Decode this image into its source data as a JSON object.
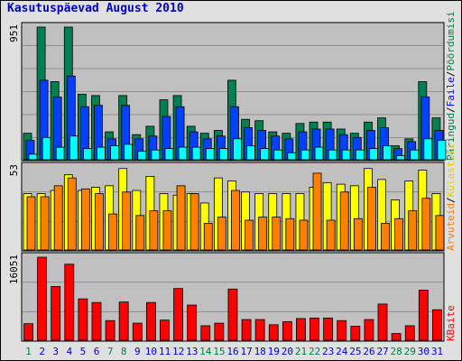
{
  "title": "Kasutuspäevad August 2010",
  "colors": {
    "panel_bg": "#c0c0c0",
    "grid": "#909090",
    "weekday_label": "#0000cc",
    "weekend_label": "#008040",
    "pages": "#ffff00",
    "files": "#0000ff",
    "hits": "#008040",
    "visits": "#ff8000",
    "sites": "#ff8000",
    "kbytes": "#ff0000",
    "visits_fill": "#ff8000",
    "sites_fill": "#ffff00",
    "kbytes_fill": "#ff0000",
    "pages_fill": "#00ffff",
    "files_fill": "#0040ff",
    "hits_fill": "#008050"
  },
  "chart_data": [
    {
      "type": "bar",
      "panel": "top",
      "y_max_label": "951",
      "ylim": [
        0,
        951
      ],
      "grid": true,
      "legend_right": [
        "Päringud",
        "/",
        "Faile",
        "/",
        "Pöördumisi"
      ],
      "categories": [
        "1",
        "2",
        "3",
        "4",
        "5",
        "6",
        "7",
        "8",
        "9",
        "10",
        "11",
        "12",
        "13",
        "14",
        "15",
        "16",
        "17",
        "18",
        "19",
        "20",
        "21",
        "22",
        "23",
        "24",
        "25",
        "26",
        "27",
        "28",
        "29",
        "30",
        "31"
      ],
      "weekend_days": [
        "1",
        "7",
        "8",
        "14",
        "15",
        "21",
        "22",
        "28",
        "29"
      ],
      "series": [
        {
          "name": "Päringud",
          "key": "hits",
          "values": [
            190,
            951,
            560,
            951,
            470,
            460,
            200,
            460,
            180,
            240,
            430,
            460,
            240,
            190,
            210,
            570,
            290,
            280,
            200,
            190,
            260,
            270,
            270,
            220,
            190,
            270,
            300,
            100,
            150,
            560,
            300
          ]
        },
        {
          "name": "Faile",
          "key": "files",
          "values": [
            140,
            570,
            450,
            600,
            380,
            390,
            150,
            390,
            150,
            170,
            310,
            380,
            200,
            150,
            170,
            380,
            230,
            210,
            170,
            150,
            200,
            220,
            220,
            180,
            160,
            210,
            230,
            80,
            130,
            450,
            210
          ]
        },
        {
          "name": "Pöördumisi",
          "key": "pages",
          "values": [
            40,
            160,
            90,
            170,
            80,
            90,
            100,
            110,
            60,
            70,
            80,
            90,
            90,
            80,
            80,
            150,
            100,
            80,
            70,
            50,
            70,
            90,
            70,
            70,
            70,
            80,
            100,
            30,
            70,
            150,
            140
          ]
        }
      ]
    },
    {
      "type": "bar",
      "panel": "middle",
      "y_max_label": "53",
      "ylim": [
        0,
        53
      ],
      "grid": true,
      "legend_right": [
        "Arvuteid",
        "/",
        "Külastusi"
      ],
      "categories": [
        "1",
        "2",
        "3",
        "4",
        "5",
        "6",
        "7",
        "8",
        "9",
        "10",
        "11",
        "12",
        "13",
        "14",
        "15",
        "16",
        "17",
        "18",
        "19",
        "20",
        "21",
        "22",
        "23",
        "24",
        "25",
        "26",
        "27",
        "28",
        "29",
        "30",
        "31"
      ],
      "series": [
        {
          "name": "Külastusi",
          "key": "sites",
          "values": [
            36,
            36,
            38,
            48,
            38,
            40,
            41,
            52,
            38,
            47,
            36,
            35,
            36,
            30,
            46,
            44,
            37,
            36,
            36,
            36,
            36,
            40,
            43,
            42,
            41,
            52,
            45,
            32,
            44,
            51,
            36
          ]
        },
        {
          "name": "Arvuteid",
          "key": "visits",
          "values": [
            34,
            34,
            41,
            46,
            39,
            36,
            23,
            37,
            22,
            25,
            25,
            41,
            36,
            17,
            21,
            38,
            19,
            21,
            21,
            20,
            19,
            49,
            19,
            37,
            20,
            40,
            17,
            20,
            25,
            33,
            22
          ]
        }
      ]
    },
    {
      "type": "bar",
      "panel": "bottom",
      "y_max_label": "16051",
      "ylim": [
        0,
        16051
      ],
      "grid": true,
      "legend_right": [
        "KBaite"
      ],
      "categories": [
        "1",
        "2",
        "3",
        "4",
        "5",
        "6",
        "7",
        "8",
        "9",
        "10",
        "11",
        "12",
        "13",
        "14",
        "15",
        "16",
        "17",
        "18",
        "19",
        "20",
        "21",
        "22",
        "23",
        "24",
        "25",
        "26",
        "27",
        "28",
        "29",
        "30",
        "31"
      ],
      "series": [
        {
          "name": "KBaite",
          "key": "kbytes",
          "values": [
            3200,
            16051,
            10400,
            14700,
            8000,
            7300,
            3800,
            7400,
            3300,
            7300,
            3900,
            10000,
            6800,
            2800,
            3300,
            9900,
            4000,
            4000,
            3000,
            3600,
            4200,
            4300,
            4300,
            3800,
            2700,
            4000,
            7000,
            1300,
            2800,
            9700,
            5900
          ]
        }
      ]
    }
  ]
}
